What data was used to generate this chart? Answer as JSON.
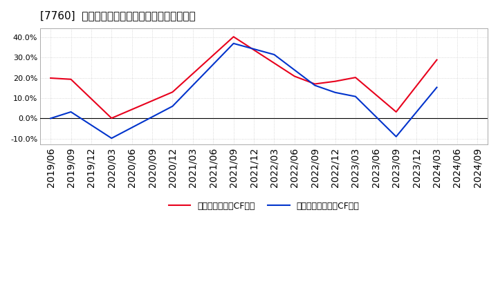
{
  "title": "[7760]  有利子負債キャッシュフロー比率の推移",
  "x_labels": [
    "2019/06",
    "2019/09",
    "2019/12",
    "2020/03",
    "2020/06",
    "2020/09",
    "2020/12",
    "2021/03",
    "2021/06",
    "2021/09",
    "2021/12",
    "2022/03",
    "2022/06",
    "2022/09",
    "2022/12",
    "2023/03",
    "2023/06",
    "2023/09",
    "2023/12",
    "2024/03",
    "2024/06",
    "2024/09"
  ],
  "red_values": [
    0.199,
    0.193,
    null,
    0.001,
    null,
    null,
    0.13,
    null,
    null,
    0.403,
    null,
    null,
    0.208,
    0.17,
    0.183,
    0.202,
    null,
    0.032,
    null,
    0.289,
    null,
    null
  ],
  "blue_values": [
    0.0,
    0.032,
    null,
    -0.098,
    null,
    null,
    0.06,
    null,
    null,
    0.37,
    null,
    0.315,
    null,
    0.163,
    0.128,
    0.108,
    null,
    -0.09,
    null,
    0.153,
    null,
    null
  ],
  "red_color": "#e8001c",
  "blue_color": "#0033cc",
  "ylim": [
    -0.13,
    0.445
  ],
  "yticks": [
    -0.1,
    0.0,
    0.1,
    0.2,
    0.3,
    0.4
  ],
  "legend_red": "有利子負債営業CF比率",
  "legend_blue": "有利子負債フリーCF比率",
  "bg_color": "#ffffff",
  "plot_bg_color": "#ffffff",
  "grid_color": "#cccccc",
  "grid_style": "dotted"
}
